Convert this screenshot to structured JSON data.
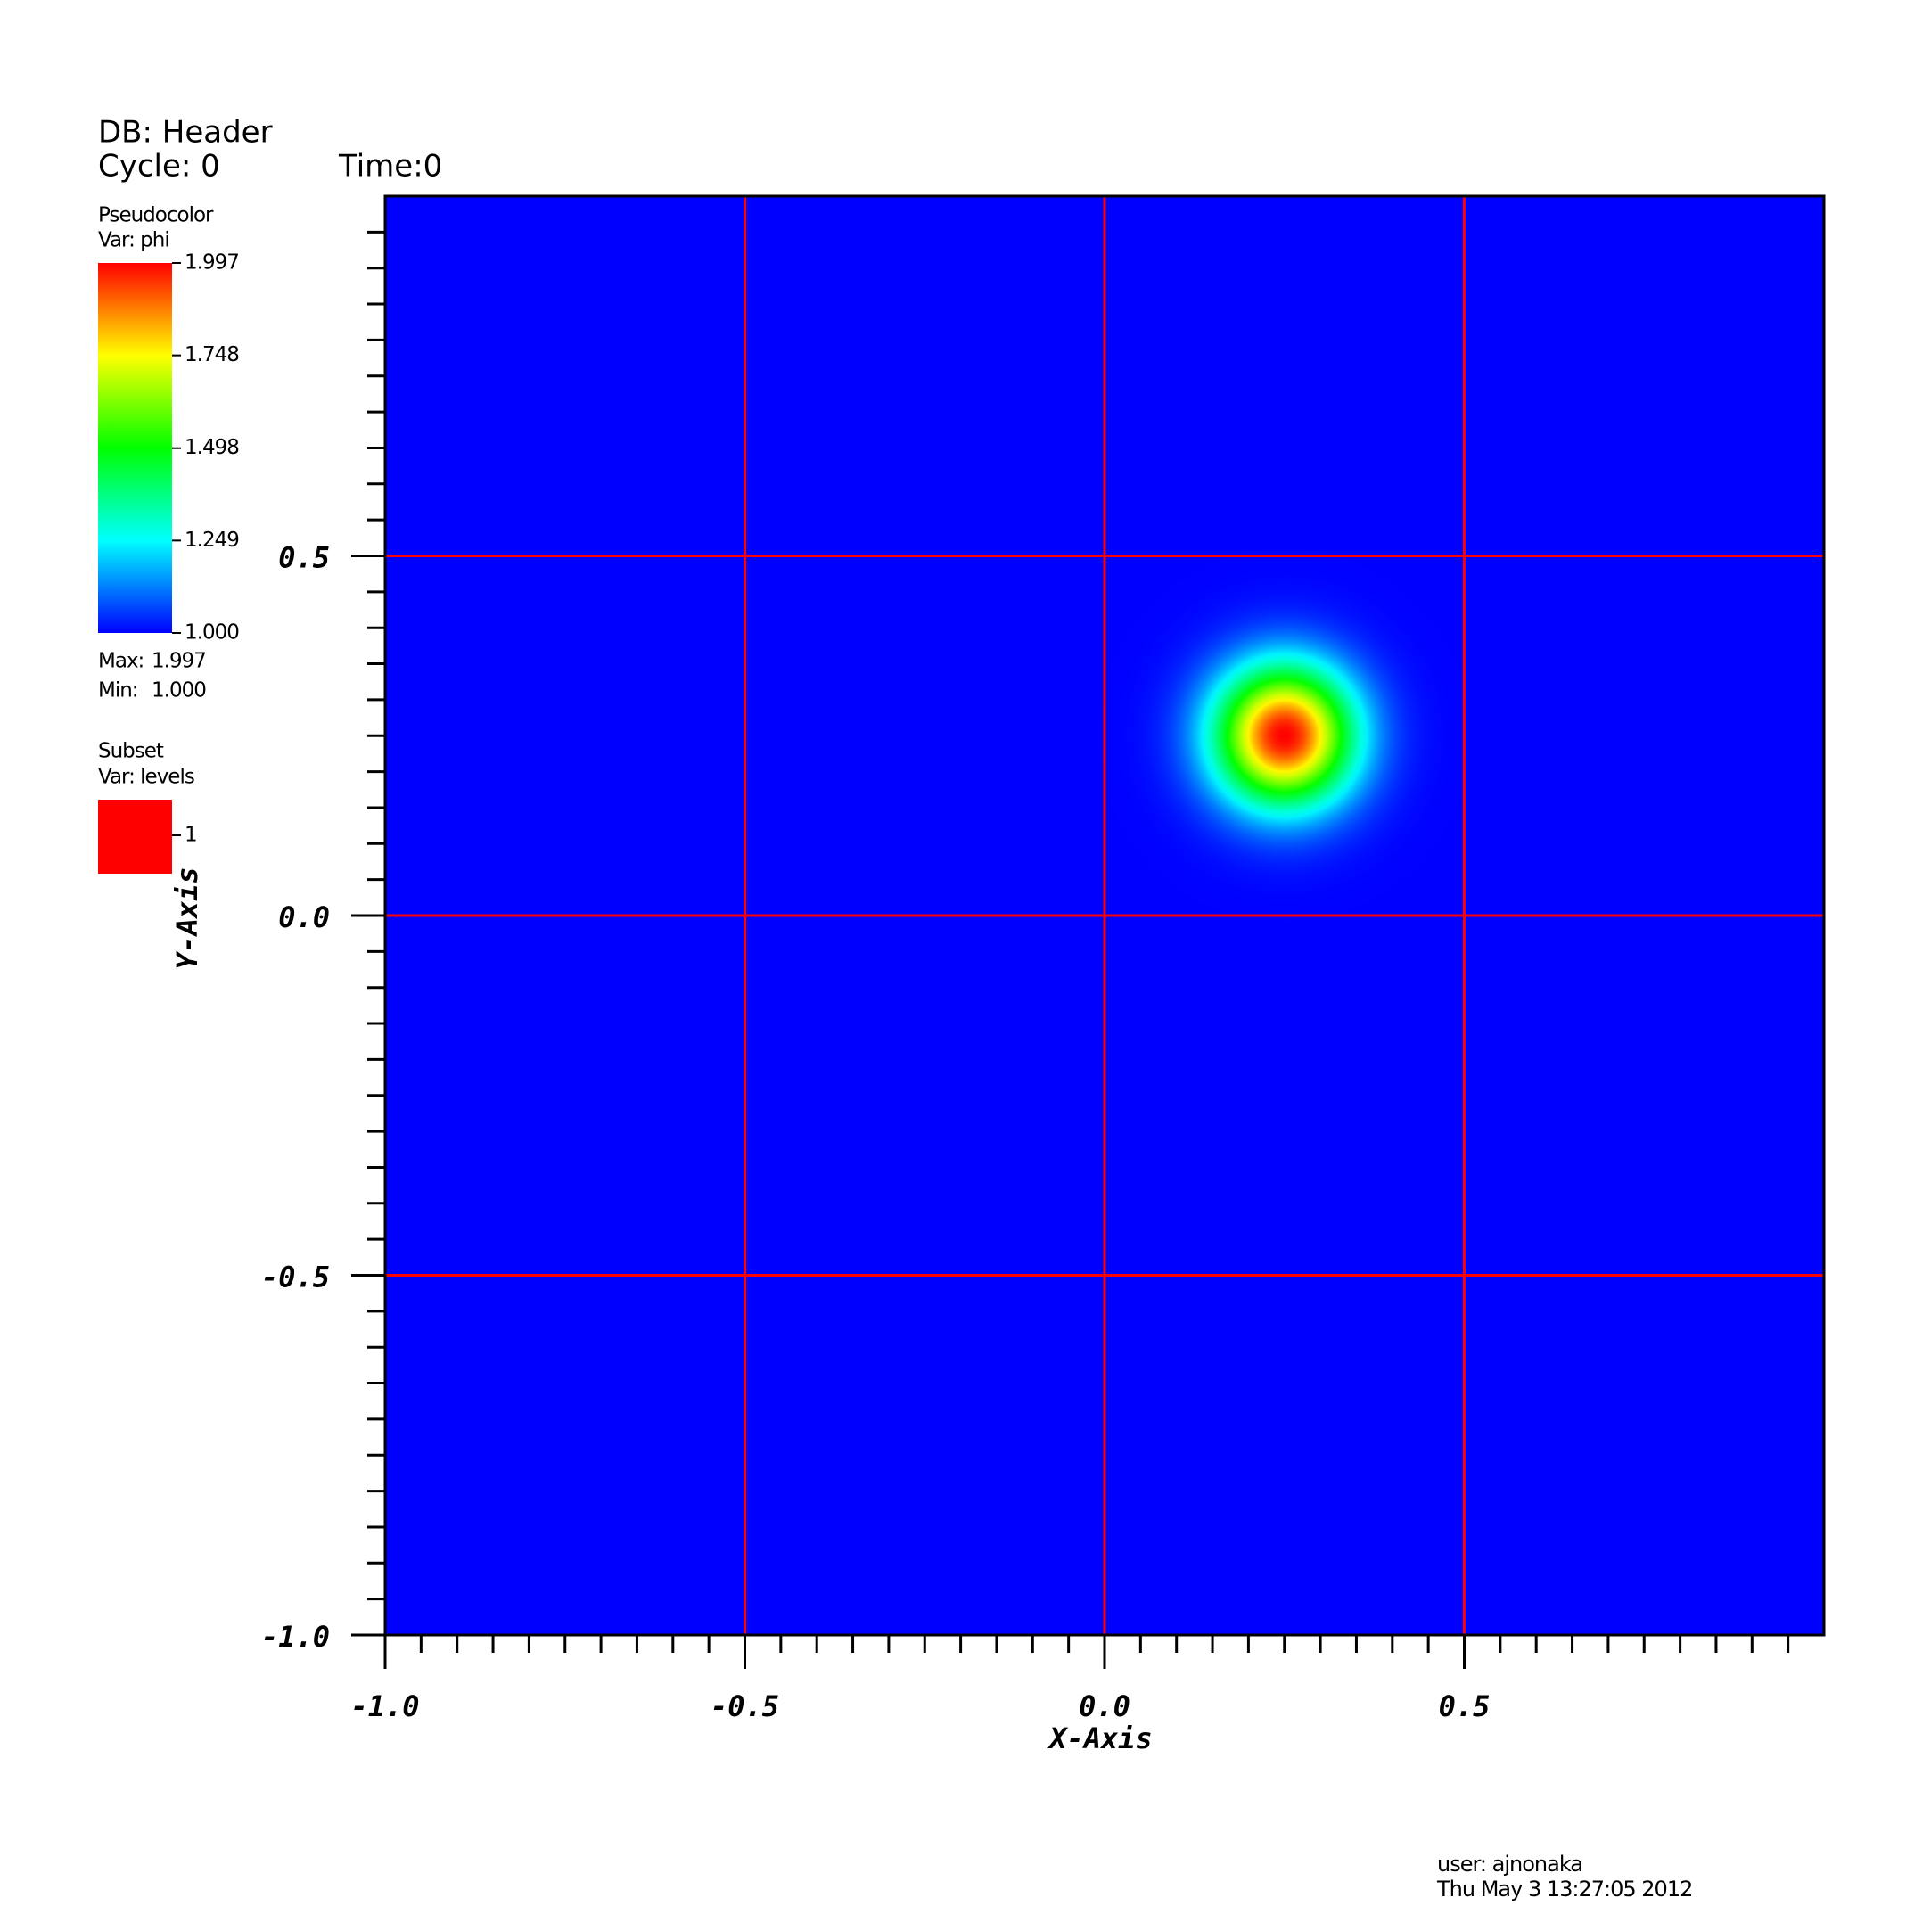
{
  "chart_data": {
    "type": "pseudocolor",
    "db": "DB: Header",
    "cycle": "Cycle: 0",
    "time": "Time:0",
    "legend_title": "Pseudocolor",
    "legend_var": "Var: phi",
    "colormap": [
      "#0000ff",
      "#00ffff",
      "#00ff00",
      "#ffff00",
      "#ff0000"
    ],
    "colorbar_ticks": [
      {
        "value": 1.0,
        "label": "1.000"
      },
      1.249,
      1.498,
      1.748,
      1.997
    ],
    "max_label": "Max:",
    "max": 1.997,
    "min_label": "Min:",
    "min": {
      "value": 1.0,
      "label": "1.000"
    },
    "subset_title": "Subset",
    "subset_var": "Var: levels",
    "subset_levels": [
      {
        "value": 1,
        "color": "#ff0000"
      }
    ],
    "field": {
      "center_x": 0.25,
      "center_y": 0.25,
      "width": 0.095
    },
    "background": "#0000ff",
    "grid": true,
    "grid_color": "#ff0000",
    "xlim": [
      -1,
      1
    ],
    "ylim": [
      -1,
      1
    ],
    "xticks": [
      {
        "value": -1,
        "label": "-1.0"
      },
      {
        "value": -0.5,
        "label": "-0.5"
      },
      {
        "value": 0,
        "label": "0.0"
      },
      0.5
    ],
    "yticks": [
      {
        "value": -1,
        "label": "-1.0"
      },
      {
        "value": -0.5,
        "label": "-0.5"
      },
      {
        "value": 0,
        "label": "0.0"
      },
      0.5
    ],
    "x_label": "X-Axis",
    "y_label": "Y-Axis",
    "user": "user: ajnonaka",
    "date": "Thu May  3 13:27:05 2012"
  }
}
